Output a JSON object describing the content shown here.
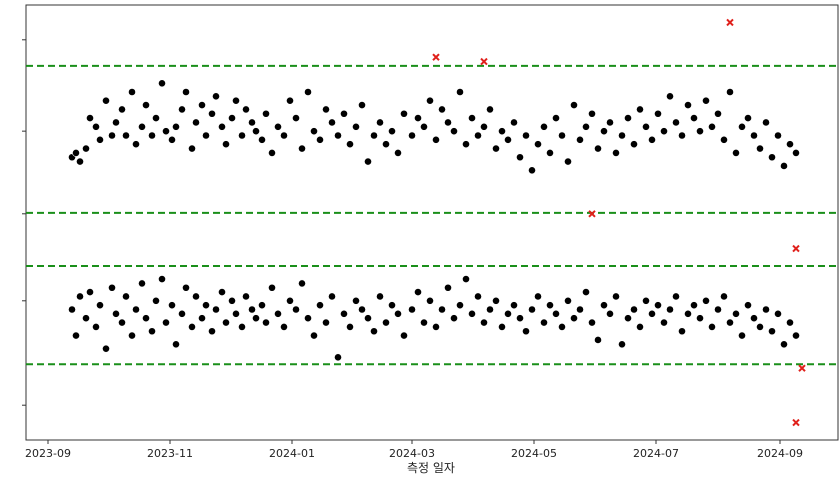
{
  "chart_data": {
    "type": "scatter",
    "title": "",
    "xlabel": "측정 일자",
    "ylabel": "",
    "x_tick_labels": [
      "2023-09",
      "2023-11",
      "2024-01",
      "2024-03",
      "2024-05",
      "2024-07",
      "2024-09"
    ],
    "x_tick_dates": [
      "2023-09-01",
      "2023-11-01",
      "2024-01-01",
      "2024-03-01",
      "2024-05-01",
      "2024-07-01",
      "2024-09-01"
    ],
    "xlim": [
      "2023-08-21",
      "2024-09-30"
    ],
    "ylim": [
      0,
      100
    ],
    "y_tick_labels": [],
    "y_tick_values": [
      8,
      32,
      52,
      71,
      92
    ],
    "grid": false,
    "legend": "none",
    "colors": {
      "in_control": "#000000",
      "out_of_control": "#e0201b",
      "limit_line": "#1a8f1a"
    },
    "limit_lines": [
      {
        "group": "upper",
        "kind": "UCL",
        "y": 86
      },
      {
        "group": "upper",
        "kind": "LCL",
        "y": 52.2
      },
      {
        "group": "lower",
        "kind": "UCL",
        "y": 40
      },
      {
        "group": "lower",
        "kind": "LCL",
        "y": 17.4
      }
    ],
    "series": [
      {
        "group": "upper-in",
        "x": [
          "2023-09-13",
          "2023-09-15",
          "2023-09-17",
          "2023-09-20",
          "2023-09-22",
          "2023-09-25",
          "2023-09-27",
          "2023-09-30",
          "2023-10-03",
          "2023-10-05",
          "2023-10-08",
          "2023-10-10",
          "2023-10-13",
          "2023-10-15",
          "2023-10-18",
          "2023-10-20",
          "2023-10-23",
          "2023-10-25",
          "2023-10-28",
          "2023-10-30",
          "2023-11-02",
          "2023-11-04",
          "2023-11-07",
          "2023-11-09",
          "2023-11-12",
          "2023-11-14",
          "2023-11-17",
          "2023-11-19",
          "2023-11-22",
          "2023-11-24",
          "2023-11-27",
          "2023-11-29",
          "2023-12-02",
          "2023-12-04",
          "2023-12-07",
          "2023-12-09",
          "2023-12-12",
          "2023-12-14",
          "2023-12-17",
          "2023-12-19",
          "2023-12-22",
          "2023-12-25",
          "2023-12-28",
          "2023-12-31",
          "2024-01-03",
          "2024-01-06",
          "2024-01-09",
          "2024-01-12",
          "2024-01-15",
          "2024-01-18",
          "2024-01-21",
          "2024-01-24",
          "2024-01-27",
          "2024-01-30",
          "2024-02-02",
          "2024-02-05",
          "2024-02-08",
          "2024-02-11",
          "2024-02-14",
          "2024-02-17",
          "2024-02-20",
          "2024-02-23",
          "2024-02-26",
          "2024-03-01",
          "2024-03-04",
          "2024-03-07",
          "2024-03-10",
          "2024-03-13",
          "2024-03-16",
          "2024-03-19",
          "2024-03-22",
          "2024-03-25",
          "2024-03-28",
          "2024-03-31",
          "2024-04-03",
          "2024-04-06",
          "2024-04-09",
          "2024-04-12",
          "2024-04-15",
          "2024-04-18",
          "2024-04-21",
          "2024-04-24",
          "2024-04-27",
          "2024-04-30",
          "2024-05-03",
          "2024-05-06",
          "2024-05-09",
          "2024-05-12",
          "2024-05-15",
          "2024-05-18",
          "2024-05-21",
          "2024-05-24",
          "2024-05-27",
          "2024-05-30",
          "2024-06-02",
          "2024-06-05",
          "2024-06-08",
          "2024-06-11",
          "2024-06-14",
          "2024-06-17",
          "2024-06-20",
          "2024-06-23",
          "2024-06-26",
          "2024-06-29",
          "2024-07-02",
          "2024-07-05",
          "2024-07-08",
          "2024-07-11",
          "2024-07-14",
          "2024-07-17",
          "2024-07-20",
          "2024-07-23",
          "2024-07-26",
          "2024-07-29",
          "2024-08-01",
          "2024-08-04",
          "2024-08-07",
          "2024-08-10",
          "2024-08-13",
          "2024-08-16",
          "2024-08-19",
          "2024-08-22",
          "2024-08-25",
          "2024-08-28",
          "2024-08-31",
          "2024-09-03",
          "2024-09-06",
          "2024-09-09"
        ],
        "y": [
          65,
          66,
          64,
          67,
          74,
          72,
          69,
          78,
          70,
          73,
          76,
          70,
          80,
          68,
          72,
          77,
          70,
          74,
          82,
          71,
          69,
          72,
          76,
          80,
          67,
          73,
          77,
          70,
          75,
          79,
          72,
          68,
          74,
          78,
          70,
          76,
          73,
          71,
          69,
          75,
          66,
          72,
          70,
          78,
          74,
          67,
          80,
          71,
          69,
          76,
          73,
          70,
          75,
          68,
          72,
          77,
          64,
          70,
          73,
          68,
          71,
          66,
          75,
          70,
          74,
          72,
          78,
          69,
          76,
          73,
          71,
          80,
          68,
          74,
          70,
          72,
          76,
          67,
          71,
          69,
          73,
          65,
          70,
          62,
          68,
          72,
          66,
          74,
          70,
          64,
          77,
          69,
          72,
          75,
          67,
          71,
          73,
          66,
          70,
          74,
          68,
          76,
          72,
          69,
          75,
          71,
          79,
          73,
          70,
          77,
          74,
          71,
          78,
          72,
          75,
          69,
          80,
          66,
          72,
          74,
          70,
          67,
          73,
          65,
          70,
          63,
          68,
          66
        ]
      },
      {
        "group": "lower-in",
        "x": [
          "2023-09-13",
          "2023-09-15",
          "2023-09-17",
          "2023-09-20",
          "2023-09-22",
          "2023-09-25",
          "2023-09-27",
          "2023-09-30",
          "2023-10-03",
          "2023-10-05",
          "2023-10-08",
          "2023-10-10",
          "2023-10-13",
          "2023-10-15",
          "2023-10-18",
          "2023-10-20",
          "2023-10-23",
          "2023-10-25",
          "2023-10-28",
          "2023-10-30",
          "2023-11-02",
          "2023-11-04",
          "2023-11-07",
          "2023-11-09",
          "2023-11-12",
          "2023-11-14",
          "2023-11-17",
          "2023-11-19",
          "2023-11-22",
          "2023-11-24",
          "2023-11-27",
          "2023-11-29",
          "2023-12-02",
          "2023-12-04",
          "2023-12-07",
          "2023-12-09",
          "2023-12-12",
          "2023-12-14",
          "2023-12-17",
          "2023-12-19",
          "2023-12-22",
          "2023-12-25",
          "2023-12-28",
          "2023-12-31",
          "2024-01-03",
          "2024-01-06",
          "2024-01-09",
          "2024-01-12",
          "2024-01-15",
          "2024-01-18",
          "2024-01-21",
          "2024-01-24",
          "2024-01-27",
          "2024-01-30",
          "2024-02-02",
          "2024-02-05",
          "2024-02-08",
          "2024-02-11",
          "2024-02-14",
          "2024-02-17",
          "2024-02-20",
          "2024-02-23",
          "2024-02-26",
          "2024-03-01",
          "2024-03-04",
          "2024-03-07",
          "2024-03-10",
          "2024-03-13",
          "2024-03-16",
          "2024-03-19",
          "2024-03-22",
          "2024-03-25",
          "2024-03-28",
          "2024-03-31",
          "2024-04-03",
          "2024-04-06",
          "2024-04-09",
          "2024-04-12",
          "2024-04-15",
          "2024-04-18",
          "2024-04-21",
          "2024-04-24",
          "2024-04-27",
          "2024-04-30",
          "2024-05-03",
          "2024-05-06",
          "2024-05-09",
          "2024-05-12",
          "2024-05-15",
          "2024-05-18",
          "2024-05-21",
          "2024-05-24",
          "2024-05-27",
          "2024-05-30",
          "2024-06-02",
          "2024-06-05",
          "2024-06-08",
          "2024-06-11",
          "2024-06-14",
          "2024-06-17",
          "2024-06-20",
          "2024-06-23",
          "2024-06-26",
          "2024-06-29",
          "2024-07-02",
          "2024-07-05",
          "2024-07-08",
          "2024-07-11",
          "2024-07-14",
          "2024-07-17",
          "2024-07-20",
          "2024-07-23",
          "2024-07-26",
          "2024-07-29",
          "2024-08-01",
          "2024-08-04",
          "2024-08-07",
          "2024-08-10",
          "2024-08-13",
          "2024-08-16",
          "2024-08-19",
          "2024-08-22",
          "2024-08-25",
          "2024-08-28",
          "2024-08-31",
          "2024-09-03",
          "2024-09-06",
          "2024-09-09"
        ],
        "y": [
          30,
          24,
          33,
          28,
          34,
          26,
          31,
          21,
          35,
          29,
          27,
          33,
          24,
          30,
          36,
          28,
          25,
          32,
          37,
          27,
          31,
          22,
          29,
          35,
          26,
          33,
          28,
          31,
          25,
          30,
          34,
          27,
          32,
          29,
          26,
          33,
          30,
          28,
          31,
          27,
          35,
          29,
          26,
          32,
          30,
          36,
          28,
          24,
          31,
          27,
          33,
          19,
          29,
          26,
          32,
          30,
          28,
          25,
          33,
          27,
          31,
          29,
          24,
          30,
          34,
          27,
          32,
          26,
          30,
          35,
          28,
          31,
          37,
          29,
          33,
          27,
          30,
          32,
          26,
          29,
          31,
          28,
          25,
          30,
          33,
          27,
          31,
          29,
          26,
          32,
          28,
          30,
          34,
          27,
          23,
          31,
          29,
          33,
          22,
          28,
          30,
          26,
          32,
          29,
          31,
          27,
          30,
          33,
          25,
          29,
          31,
          28,
          32,
          26,
          30,
          33,
          27,
          29,
          24,
          31,
          28,
          26,
          30,
          25,
          29,
          22,
          27,
          24
        ]
      },
      {
        "group": "out-of-control",
        "x": [
          "2024-03-13",
          "2024-04-06",
          "2024-05-30",
          "2024-08-07",
          "2024-09-09",
          "2024-09-12",
          "2024-09-09"
        ],
        "y": [
          88,
          87,
          52,
          96,
          44,
          16.5,
          4
        ]
      }
    ]
  }
}
